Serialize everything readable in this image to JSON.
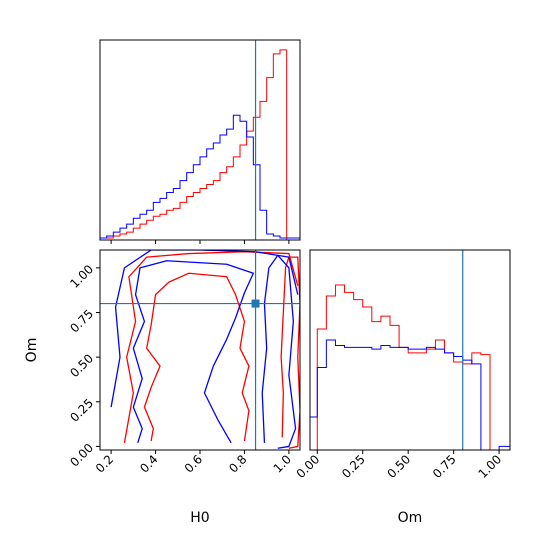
{
  "chart_data": [
    {
      "type": "histogram",
      "variable": "H0",
      "xlim": [
        0.15,
        1.05
      ],
      "truth": 0.85,
      "bin_edges": [
        0.15,
        0.18,
        0.21,
        0.24,
        0.27,
        0.3,
        0.33,
        0.36,
        0.39,
        0.42,
        0.45,
        0.48,
        0.51,
        0.54,
        0.57,
        0.6,
        0.63,
        0.66,
        0.69,
        0.72,
        0.75,
        0.78,
        0.81,
        0.84,
        0.87,
        0.9,
        0.93,
        0.96,
        0.99,
        1.02,
        1.05
      ],
      "series": [
        {
          "color": "#ff0000",
          "values": [
            1,
            1,
            2,
            3,
            4,
            6,
            8,
            10,
            12,
            13,
            15,
            16,
            19,
            22,
            24,
            26,
            28,
            30,
            34,
            37,
            42,
            48,
            55,
            62,
            70,
            82,
            94,
            96,
            0,
            0
          ]
        },
        {
          "color": "#0000ff",
          "values": [
            1,
            2,
            4,
            6,
            8,
            11,
            13,
            15,
            19,
            21,
            24,
            26,
            30,
            34,
            38,
            42,
            46,
            49,
            53,
            56,
            63,
            60,
            52,
            38,
            15,
            3,
            2,
            1,
            1,
            1
          ]
        }
      ]
    },
    {
      "type": "contour",
      "xlabel": "H0",
      "ylabel": "Om",
      "xlim": [
        0.15,
        1.05
      ],
      "ylim": [
        -0.02,
        1.1
      ],
      "xticks": [
        "0.2",
        "0.4",
        "0.6",
        "0.8",
        "1.0"
      ],
      "yticks": [
        "0.00",
        "0.25",
        "0.50",
        "0.75",
        "1.00"
      ],
      "truth": {
        "x": 0.85,
        "y": 0.8
      },
      "series": [
        {
          "color": "#ff0000",
          "contours": [
            [
              [
                0.97,
                0.05
              ],
              [
                0.975,
                0.3
              ],
              [
                0.965,
                0.5
              ],
              [
                0.975,
                0.75
              ],
              [
                0.985,
                1.0
              ],
              [
                1.0,
                1.06
              ],
              [
                1.04,
                1.06
              ],
              [
                1.05,
                0.8
              ],
              [
                1.04,
                0.5
              ],
              [
                1.05,
                0.2
              ],
              [
                1.04,
                0.0
              ],
              [
                1.0,
                -0.01
              ]
            ],
            [
              [
                0.8,
                0.03
              ],
              [
                0.82,
                0.2
              ],
              [
                0.79,
                0.3
              ],
              [
                0.82,
                0.45
              ],
              [
                0.78,
                0.55
              ],
              [
                0.8,
                0.7
              ],
              [
                0.76,
                0.85
              ],
              [
                0.72,
                0.95
              ],
              [
                0.55,
                0.97
              ],
              [
                0.46,
                0.92
              ],
              [
                0.4,
                0.85
              ],
              [
                0.38,
                0.68
              ],
              [
                0.36,
                0.55
              ],
              [
                0.42,
                0.45
              ],
              [
                0.38,
                0.33
              ],
              [
                0.35,
                0.22
              ],
              [
                0.39,
                0.1
              ],
              [
                0.38,
                0.03
              ]
            ],
            [
              [
                0.26,
                0.02
              ],
              [
                0.3,
                0.3
              ],
              [
                0.27,
                0.5
              ],
              [
                0.31,
                0.7
              ],
              [
                0.28,
                0.95
              ],
              [
                0.36,
                1.06
              ],
              [
                0.55,
                1.08
              ],
              [
                0.8,
                1.09
              ],
              [
                1.0,
                1.08
              ],
              [
                1.04,
                0.9
              ]
            ]
          ]
        },
        {
          "color": "#0000ff",
          "contours": [
            [
              [
                0.89,
                0.02
              ],
              [
                0.88,
                0.3
              ],
              [
                0.9,
                0.55
              ],
              [
                0.89,
                0.8
              ],
              [
                0.91,
                1.0
              ],
              [
                0.95,
                1.07
              ],
              [
                1.0,
                1.0
              ],
              [
                1.02,
                0.7
              ],
              [
                1.0,
                0.4
              ],
              [
                1.03,
                0.1
              ],
              [
                1.0,
                0.0
              ],
              [
                0.95,
                -0.01
              ]
            ],
            [
              [
                0.74,
                0.02
              ],
              [
                0.68,
                0.15
              ],
              [
                0.62,
                0.3
              ],
              [
                0.66,
                0.45
              ],
              [
                0.72,
                0.6
              ],
              [
                0.76,
                0.72
              ],
              [
                0.8,
                0.86
              ],
              [
                0.84,
                0.97
              ],
              [
                0.72,
                1.02
              ],
              [
                0.45,
                1.04
              ],
              [
                0.33,
                1.0
              ],
              [
                0.31,
                0.85
              ],
              [
                0.35,
                0.7
              ],
              [
                0.3,
                0.55
              ],
              [
                0.34,
                0.38
              ],
              [
                0.3,
                0.22
              ],
              [
                0.34,
                0.1
              ],
              [
                0.32,
                0.02
              ]
            ],
            [
              [
                0.2,
                0.22
              ],
              [
                0.24,
                0.5
              ],
              [
                0.22,
                0.78
              ],
              [
                0.26,
                1.0
              ],
              [
                0.38,
                1.1
              ],
              [
                0.6,
                1.1
              ],
              [
                0.85,
                1.09
              ],
              [
                1.0,
                1.06
              ],
              [
                1.04,
                0.85
              ]
            ]
          ]
        }
      ]
    },
    {
      "type": "histogram",
      "variable": "Om",
      "xlabel": "Om",
      "xlim": [
        -0.04,
        1.06
      ],
      "xticks": [
        "0.00",
        "0.25",
        "0.50",
        "0.75",
        "1.00"
      ],
      "truth": 0.8,
      "bin_edges": [
        -0.04,
        0.0,
        0.05,
        0.1,
        0.15,
        0.2,
        0.25,
        0.3,
        0.35,
        0.4,
        0.45,
        0.5,
        0.55,
        0.6,
        0.65,
        0.7,
        0.75,
        0.8,
        0.85,
        0.9,
        0.95,
        1.0,
        1.06
      ],
      "series": [
        {
          "color": "#ff0000",
          "values": [
            0,
            66,
            84,
            90,
            86,
            82,
            78,
            70,
            73,
            68,
            56,
            53,
            53,
            55,
            60,
            53,
            48,
            47,
            53,
            52,
            0,
            0
          ]
        },
        {
          "color": "#0000ff",
          "values": [
            18,
            45,
            60,
            57,
            56,
            56,
            56,
            55,
            57,
            56,
            56,
            55,
            55,
            56,
            55,
            53,
            51,
            49,
            47,
            0,
            0,
            2
          ]
        }
      ]
    }
  ]
}
